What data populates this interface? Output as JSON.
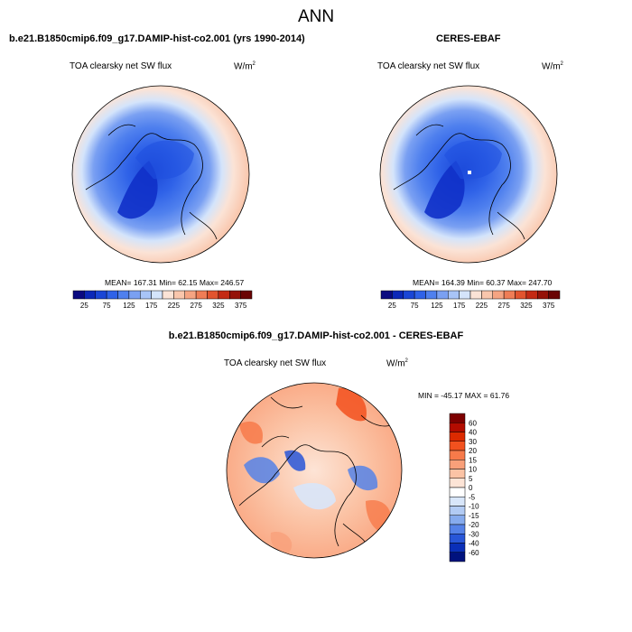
{
  "page": {
    "title": "ANN"
  },
  "panels": [
    {
      "title": "b.e21.B1850cmip6.f09_g17.DAMIP-hist-co2.001 (yrs 1990-2014)",
      "variable": "TOA clearsky net SW flux",
      "units_base": "W/m",
      "units_exp": "2",
      "stats": "MEAN= 167.31  Min=  62.15  Max= 246.57"
    },
    {
      "title": "CERES-EBAF",
      "variable": "TOA clearsky net SW flux",
      "units_base": "W/m",
      "units_exp": "2",
      "stats": "MEAN= 164.39  Min=  60.37  Max= 247.70"
    },
    {
      "title": "b.e21.B1850cmip6.f09_g17.DAMIP-hist-co2.001 - CERES-EBAF",
      "variable": "TOA clearsky net SW flux",
      "units_base": "W/m",
      "units_exp": "2",
      "stats": "MIN = -45.17 MAX =  61.76"
    }
  ],
  "chart_data": [
    {
      "type": "heatmap",
      "projection": "north-polar-stereographic",
      "title": "b.e21.B1850cmip6.f09_g17.DAMIP-hist-co2.001 (yrs 1990-2014)",
      "variable": "TOA clearsky net SW flux",
      "units": "W/m2",
      "mean": 167.31,
      "min": 62.15,
      "max": 246.57,
      "colorbar": {
        "levels": [
          25,
          50,
          75,
          100,
          125,
          150,
          175,
          200,
          225,
          250,
          275,
          300,
          325,
          350,
          375
        ],
        "tick_labels": [
          "25",
          "75",
          "125",
          "175",
          "225",
          "275",
          "325",
          "375"
        ],
        "colors": [
          "#0a0a80",
          "#0b28b8",
          "#1a46d6",
          "#2f62e8",
          "#4f80ee",
          "#7aa0f2",
          "#a8c4f7",
          "#d4e4fb",
          "#fbe3d6",
          "#f9c6ac",
          "#f5a482",
          "#ef7d56",
          "#e2542e",
          "#c42a14",
          "#951208",
          "#6a0404"
        ]
      }
    },
    {
      "type": "heatmap",
      "projection": "north-polar-stereographic",
      "title": "CERES-EBAF",
      "variable": "TOA clearsky net SW flux",
      "units": "W/m2",
      "mean": 164.39,
      "min": 60.37,
      "max": 247.7,
      "colorbar": {
        "levels": [
          25,
          50,
          75,
          100,
          125,
          150,
          175,
          200,
          225,
          250,
          275,
          300,
          325,
          350,
          375
        ],
        "tick_labels": [
          "25",
          "75",
          "125",
          "175",
          "225",
          "275",
          "325",
          "375"
        ],
        "colors": [
          "#0a0a80",
          "#0b28b8",
          "#1a46d6",
          "#2f62e8",
          "#4f80ee",
          "#7aa0f2",
          "#a8c4f7",
          "#d4e4fb",
          "#fbe3d6",
          "#f9c6ac",
          "#f5a482",
          "#ef7d56",
          "#e2542e",
          "#c42a14",
          "#951208",
          "#6a0404"
        ]
      }
    },
    {
      "type": "heatmap",
      "projection": "north-polar-stereographic",
      "title": "b.e21.B1850cmip6.f09_g17.DAMIP-hist-co2.001 - CERES-EBAF",
      "variable": "TOA clearsky net SW flux",
      "units": "W/m2",
      "min": -45.17,
      "max": 61.76,
      "colorbar": {
        "orientation": "vertical",
        "tick_labels": [
          "60",
          "40",
          "30",
          "20",
          "15",
          "10",
          "5",
          "0",
          "-5",
          "-10",
          "-15",
          "-20",
          "-30",
          "-40",
          "-60"
        ],
        "colors": [
          "#7d0000",
          "#b30c00",
          "#dc2a00",
          "#f2511e",
          "#f77a4a",
          "#f9a07a",
          "#fbc3a5",
          "#fde4d6",
          "#ffffff",
          "#d8e6fa",
          "#b2cbf4",
          "#86abee",
          "#5582e8",
          "#2856d8",
          "#0a2fb8",
          "#00127e"
        ]
      }
    }
  ]
}
